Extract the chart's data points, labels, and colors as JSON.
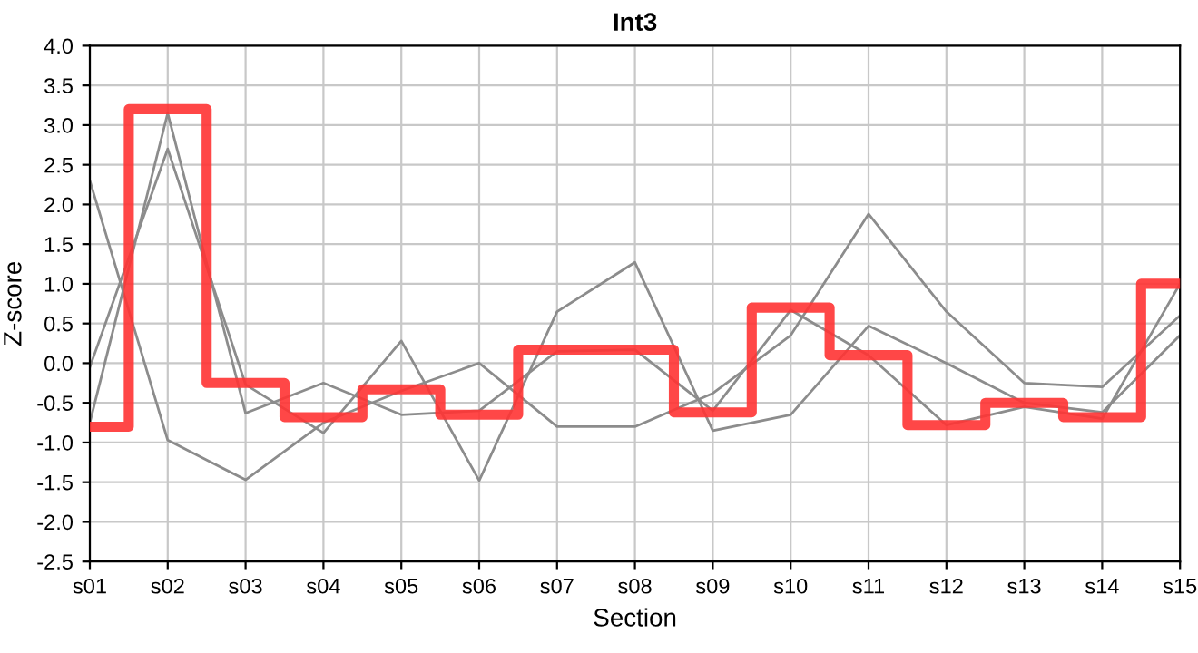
{
  "chart_data": {
    "type": "step",
    "title": "Int3",
    "xlabel": "Section",
    "ylabel": "Z-score",
    "categories": [
      "s01",
      "s02",
      "s03",
      "s04",
      "s05",
      "s06",
      "s07",
      "s08",
      "s09",
      "s10",
      "s11",
      "s12",
      "s13",
      "s14",
      "s15"
    ],
    "series": [
      {
        "type": "line",
        "color": "#8c8c8c",
        "values": [
          2.3,
          -0.97,
          -1.47,
          -0.75,
          -0.35,
          0.0,
          -0.8,
          -0.8,
          -0.38,
          0.35,
          1.88,
          0.65,
          -0.25,
          -0.3,
          0.6
        ]
      },
      {
        "type": "line",
        "color": "#8c8c8c",
        "values": [
          -0.05,
          2.7,
          -0.27,
          -0.88,
          0.28,
          -1.48,
          0.65,
          1.27,
          -0.85,
          -0.65,
          0.47,
          0.0,
          -0.5,
          -0.62,
          0.35
        ]
      },
      {
        "type": "line",
        "color": "#8c8c8c",
        "values": [
          -0.75,
          3.15,
          -0.63,
          -0.25,
          -0.65,
          -0.6,
          0.15,
          0.17,
          -0.6,
          0.67,
          0.1,
          -0.78,
          -0.55,
          -0.7,
          1.0
        ]
      },
      {
        "color": "#ff3333",
        "values": [
          -0.8,
          3.2,
          -0.25,
          -0.68,
          -0.33,
          -0.65,
          0.17,
          0.17,
          -0.62,
          0.7,
          0.1,
          -0.78,
          -0.5,
          -0.68,
          1.0
        ]
      }
    ],
    "ylim": [
      -2.5,
      4.0
    ],
    "yticks": [
      {
        "value": -2.5,
        "label": "-2.5"
      },
      {
        "value": -2.0,
        "label": "-2.0"
      },
      {
        "value": -1.5,
        "label": "-1.5"
      },
      {
        "value": -1.0,
        "label": "-1.0"
      },
      {
        "value": -0.5,
        "label": "-0.5"
      },
      {
        "value": 0.0,
        "label": "0.0"
      },
      {
        "value": 0.5,
        "label": "0.5"
      },
      {
        "value": 1.0,
        "label": "1.0"
      },
      {
        "value": 1.5,
        "label": "1.5"
      },
      {
        "value": 2.0,
        "label": "2.0"
      },
      {
        "value": 2.5,
        "label": "2.5"
      },
      {
        "value": 3.0,
        "label": "3.0"
      },
      {
        "value": 3.5,
        "label": "3.5"
      },
      {
        "value": 4.0,
        "label": "4.0"
      }
    ],
    "grid": true,
    "legend": false
  }
}
